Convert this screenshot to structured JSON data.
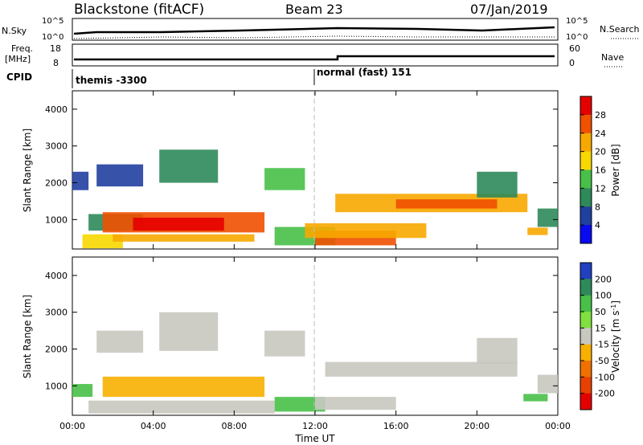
{
  "header": {
    "title": "Blackstone (fitACF)",
    "beam": "Beam 23",
    "date": "07/Jan/2019"
  },
  "nsky_panel": {
    "left_label": "N.Sky",
    "left_ticks": [
      "10^5",
      "10^0"
    ],
    "right_ticks": [
      "10^5",
      "10^0"
    ],
    "right_label": "N.Search"
  },
  "freq_panel": {
    "left_label_1": "Freq.",
    "left_label_2": "[MHz]",
    "left_ticks": [
      "18",
      "8"
    ],
    "right_ticks": [
      "60",
      "0"
    ],
    "right_label": "Nave"
  },
  "cpid": {
    "label": "CPID",
    "segments": [
      {
        "start_hour": 0,
        "text": "themis -3300"
      },
      {
        "start_hour": 12,
        "text": "normal (fast) 151"
      }
    ]
  },
  "chart_data": [
    {
      "type": "heatmap",
      "name": "power",
      "ylabel": "Slant Range [km]",
      "xlim": [
        0,
        24
      ],
      "ylim": [
        200,
        4500
      ],
      "yticks": [
        {
          "v": 1000,
          "label": "1000"
        },
        {
          "v": 2000,
          "label": "2000"
        },
        {
          "v": 3000,
          "label": "3000"
        },
        {
          "v": 4000,
          "label": "4000"
        }
      ],
      "colorbar": {
        "label": "Power [dB]",
        "tick_labels": [
          "28",
          "24",
          "20",
          "16",
          "12",
          "8",
          "4"
        ],
        "colors": [
          "#e50000",
          "#f05000",
          "#f7a800",
          "#f7d800",
          "#48c048",
          "#2e8a5a",
          "#2040a0",
          "#0a0af0"
        ]
      },
      "bands": [
        {
          "x": [
            0.5,
            2.5
          ],
          "y": [
            220,
            600
          ],
          "color": "#f7d800"
        },
        {
          "x": [
            0.8,
            3.5
          ],
          "y": [
            700,
            1150
          ],
          "color": "#2e8a5a"
        },
        {
          "x": [
            1.5,
            9.5
          ],
          "y": [
            650,
            1200
          ],
          "color": "#f05000"
        },
        {
          "x": [
            3.0,
            7.5
          ],
          "y": [
            700,
            1050
          ],
          "color": "#e50000"
        },
        {
          "x": [
            2.0,
            9.0
          ],
          "y": [
            400,
            600
          ],
          "color": "#f7a800"
        },
        {
          "x": [
            0.0,
            0.8
          ],
          "y": [
            1800,
            2300
          ],
          "color": "#2040a0"
        },
        {
          "x": [
            1.2,
            3.5
          ],
          "y": [
            1900,
            2500
          ],
          "color": "#2040a0"
        },
        {
          "x": [
            4.3,
            7.2
          ],
          "y": [
            2000,
            2900
          ],
          "color": "#2e8a5a"
        },
        {
          "x": [
            9.5,
            11.5
          ],
          "y": [
            1800,
            2400
          ],
          "color": "#48c048"
        },
        {
          "x": [
            10.0,
            13.0
          ],
          "y": [
            300,
            800
          ],
          "color": "#48c048"
        },
        {
          "x": [
            12.0,
            16.0
          ],
          "y": [
            300,
            700
          ],
          "color": "#f05000"
        },
        {
          "x": [
            11.5,
            17.5
          ],
          "y": [
            500,
            900
          ],
          "color": "#f7a800"
        },
        {
          "x": [
            13.0,
            22.5
          ],
          "y": [
            1200,
            1700
          ],
          "color": "#f7a800"
        },
        {
          "x": [
            16.0,
            21.0
          ],
          "y": [
            1300,
            1550
          ],
          "color": "#f05000"
        },
        {
          "x": [
            20.0,
            22.0
          ],
          "y": [
            1600,
            2300
          ],
          "color": "#2e8a5a"
        },
        {
          "x": [
            22.5,
            23.5
          ],
          "y": [
            580,
            780
          ],
          "color": "#f7a800"
        },
        {
          "x": [
            23.0,
            24.0
          ],
          "y": [
            800,
            1300
          ],
          "color": "#2e8a5a"
        }
      ]
    },
    {
      "type": "heatmap",
      "name": "velocity",
      "ylabel": "Slant Range [km]",
      "xlabel": "Time UT",
      "xlim": [
        0,
        24
      ],
      "ylim": [
        200,
        4500
      ],
      "xticks": [
        {
          "v": 0,
          "label": "00:00"
        },
        {
          "v": 4,
          "label": "04:00"
        },
        {
          "v": 8,
          "label": "08:00"
        },
        {
          "v": 12,
          "label": "12:00"
        },
        {
          "v": 16,
          "label": "16:00"
        },
        {
          "v": 20,
          "label": "20:00"
        },
        {
          "v": 24,
          "label": "00:00"
        }
      ],
      "yticks": [
        {
          "v": 1000,
          "label": "1000"
        },
        {
          "v": 2000,
          "label": "2000"
        },
        {
          "v": 3000,
          "label": "3000"
        },
        {
          "v": 4000,
          "label": "4000"
        }
      ],
      "colorbar": {
        "label": "Velocity [m s",
        "label_sup": "-1",
        "label_end": "]",
        "tick_labels": [
          "200",
          "100",
          "50",
          "15",
          "-15",
          "-50",
          "-100",
          "-200"
        ],
        "colors": [
          "#2040c0",
          "#2e8a5a",
          "#48c048",
          "#80e040",
          "#c8c8c0",
          "#f7b000",
          "#f07000",
          "#e84000",
          "#e50000"
        ]
      },
      "bands": [
        {
          "x": [
            0.0,
            1.0
          ],
          "y": [
            700,
            1050
          ],
          "color": "#48c048"
        },
        {
          "x": [
            0.8,
            10.0
          ],
          "y": [
            250,
            600
          ],
          "color": "#c8c8c0"
        },
        {
          "x": [
            1.5,
            9.5
          ],
          "y": [
            700,
            1250
          ],
          "color": "#f7b000"
        },
        {
          "x": [
            1.2,
            3.5
          ],
          "y": [
            1900,
            2500
          ],
          "color": "#c8c8c0"
        },
        {
          "x": [
            4.3,
            7.2
          ],
          "y": [
            1950,
            3000
          ],
          "color": "#c8c8c0"
        },
        {
          "x": [
            9.5,
            11.5
          ],
          "y": [
            1800,
            2500
          ],
          "color": "#c8c8c0"
        },
        {
          "x": [
            10.0,
            12.5
          ],
          "y": [
            300,
            700
          ],
          "color": "#48c048"
        },
        {
          "x": [
            12.0,
            16.0
          ],
          "y": [
            350,
            700
          ],
          "color": "#c8c8c0"
        },
        {
          "x": [
            12.5,
            22.0
          ],
          "y": [
            1250,
            1650
          ],
          "color": "#c8c8c0"
        },
        {
          "x": [
            20.0,
            22.0
          ],
          "y": [
            1600,
            2300
          ],
          "color": "#c8c8c0"
        },
        {
          "x": [
            22.3,
            23.5
          ],
          "y": [
            580,
            780
          ],
          "color": "#48c048"
        },
        {
          "x": [
            23.0,
            24.0
          ],
          "y": [
            800,
            1300
          ],
          "color": "#c8c8c0"
        }
      ]
    }
  ]
}
